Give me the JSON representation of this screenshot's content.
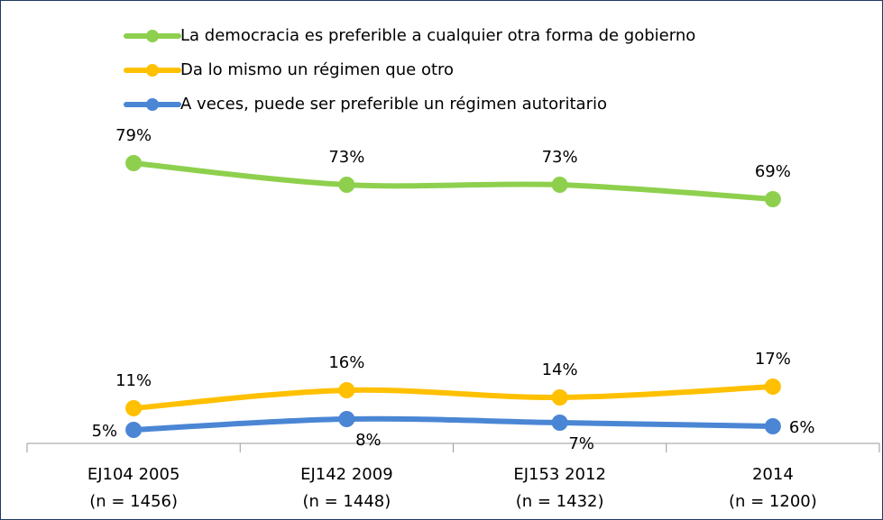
{
  "chart_data": {
    "type": "line",
    "categories": [
      [
        "EJ104 2005",
        "(n = 1456)"
      ],
      [
        "EJ142 2009",
        "(n = 1448)"
      ],
      [
        "EJ153 2012",
        "(n = 1432)"
      ],
      [
        "2014",
        "(n = 1200)"
      ]
    ],
    "series": [
      {
        "name": "La democracia es preferible a cualquier otra forma de gobierno",
        "color": "#8ed04e",
        "values": [
          79,
          73,
          73,
          69
        ],
        "value_labels": [
          "79%",
          "73%",
          "73%",
          "69%"
        ]
      },
      {
        "name": "Da lo mismo un régimen que otro",
        "color": "#ffc000",
        "values": [
          11,
          16,
          14,
          17
        ],
        "value_labels": [
          "11%",
          "16%",
          "14%",
          "17%"
        ]
      },
      {
        "name": "A veces, puede ser preferible un régimen autoritario",
        "color": "#4a86d4",
        "values": [
          5,
          8,
          7,
          6
        ],
        "value_labels": [
          "5%",
          "8%",
          "7%",
          "6%"
        ]
      }
    ],
    "ylim": [
      0,
      100
    ],
    "legend": "top"
  }
}
